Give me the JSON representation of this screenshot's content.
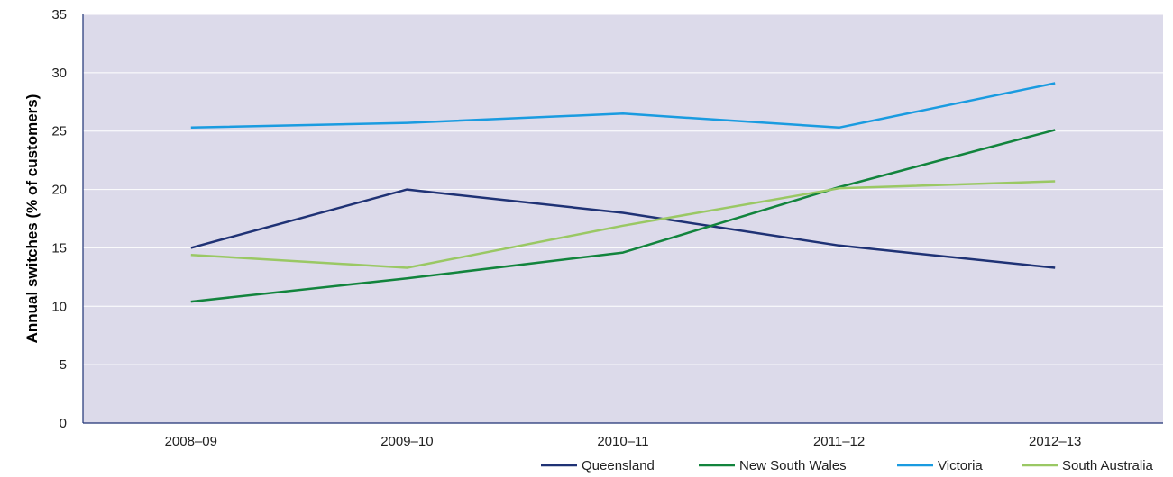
{
  "chart_data": {
    "type": "line",
    "ylabel": "Annual switches (% of customers)",
    "xlabel": "",
    "categories": [
      "2008–09",
      "2009–10",
      "2010–11",
      "2011–12",
      "2012–13"
    ],
    "ylim": [
      0,
      35
    ],
    "yticks": [
      0,
      5,
      10,
      15,
      20,
      25,
      30,
      35
    ],
    "grid": true,
    "legend_position": "bottom-right",
    "plot_background": "#dcdaea",
    "series": [
      {
        "name": "Queensland",
        "color": "#1f3275",
        "values": [
          15.0,
          20.0,
          18.0,
          15.2,
          13.3
        ]
      },
      {
        "name": "New South Wales",
        "color": "#12843d",
        "values": [
          10.4,
          12.4,
          14.6,
          20.2,
          25.1
        ]
      },
      {
        "name": "Victoria",
        "color": "#1a9be0",
        "values": [
          25.3,
          25.7,
          26.5,
          25.3,
          29.1
        ]
      },
      {
        "name": "South Australia",
        "color": "#9ac864",
        "values": [
          14.4,
          13.3,
          16.9,
          20.1,
          20.7
        ]
      }
    ]
  }
}
